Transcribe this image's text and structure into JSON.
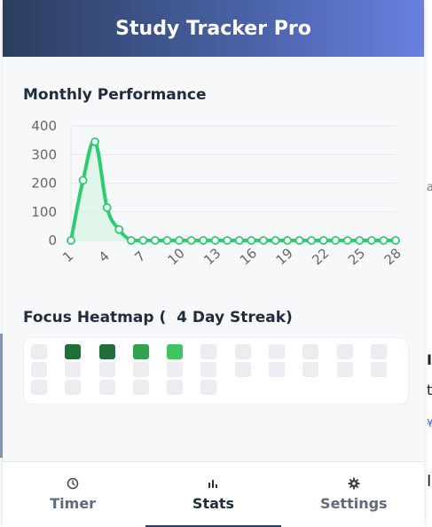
{
  "header": {
    "title": "Study Tracker Pro"
  },
  "performance": {
    "title": "Monthly Performance"
  },
  "chart_data": {
    "type": "area",
    "title": "",
    "xlabel": "",
    "ylabel": "",
    "x": [
      1,
      2,
      3,
      4,
      5,
      6,
      7,
      8,
      9,
      10,
      11,
      12,
      13,
      14,
      15,
      16,
      17,
      18,
      19,
      20,
      21,
      22,
      23,
      24,
      25,
      26,
      27,
      28
    ],
    "series": [
      {
        "values": [
          0,
          210,
          345,
          115,
          38,
          0,
          0,
          0,
          0,
          0,
          0,
          0,
          0,
          0,
          0,
          0,
          0,
          0,
          0,
          0,
          0,
          0,
          0,
          0,
          0,
          0,
          0,
          0
        ]
      }
    ],
    "x_tick_labels": [
      "1",
      "4",
      "7",
      "10",
      "13",
      "16",
      "19",
      "22",
      "25",
      "28"
    ],
    "y_tick_labels": [
      "0",
      "100",
      "200",
      "300",
      "400"
    ],
    "ylim": [
      0,
      400
    ],
    "grid": true,
    "line_color": "#2ecc71",
    "fill_color": "#d5f5e3"
  },
  "heatmap": {
    "title_prefix": "Focus Heatmap (",
    "streak_text": "4 Day Streak)",
    "levels": [
      0,
      4,
      4,
      3,
      2,
      0,
      0,
      0,
      0,
      0,
      0,
      0,
      0,
      0,
      0,
      0,
      0,
      0,
      0,
      0,
      0,
      0,
      0,
      0,
      0,
      0,
      0,
      0
    ],
    "colors": [
      "#ebedf0",
      "#9be9a8",
      "#40c463",
      "#30a14e",
      "#216e39"
    ]
  },
  "tabs": [
    {
      "label": "Timer",
      "icon": "clock-icon",
      "active": false
    },
    {
      "label": "Stats",
      "icon": "bar-chart-icon",
      "active": true
    },
    {
      "label": "Settings",
      "icon": "gear-icon",
      "active": false
    }
  ],
  "background": {
    "right_top": "a",
    "right_mid1": "I",
    "right_mid2": "t",
    "right_mid3": "¥",
    "right_low": "I"
  }
}
